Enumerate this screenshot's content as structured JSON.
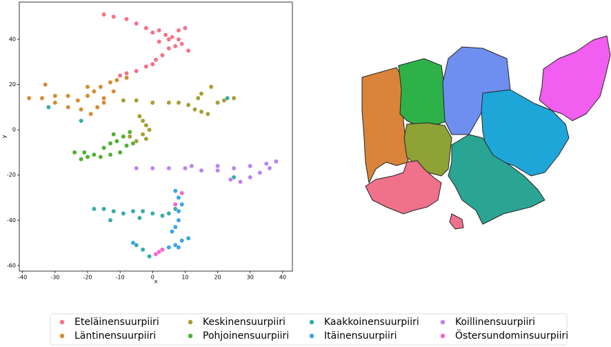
{
  "chart_data": {
    "type": "scatter",
    "xlabel": "x",
    "ylabel": "y",
    "xlim": [
      -41,
      43
    ],
    "ylim": [
      -62.5,
      56.5
    ],
    "xticks": [
      -40,
      -30,
      -20,
      -10,
      0,
      10,
      20,
      30,
      40
    ],
    "yticks": [
      -60,
      -40,
      -20,
      0,
      20,
      40
    ],
    "series": [
      {
        "name": "Eteläinensuurpiiri",
        "color": "#f77189",
        "x": [
          -15,
          -12,
          -8,
          -5,
          -2,
          0,
          2,
          4,
          6,
          8,
          10,
          9,
          7,
          5,
          3,
          1,
          0,
          -2,
          -5,
          -8,
          -10,
          11,
          2,
          5,
          8
        ],
        "y": [
          51,
          50,
          49,
          47,
          45,
          43,
          44,
          42,
          41,
          44,
          45,
          38,
          37,
          36,
          33,
          31,
          29,
          28,
          26,
          25,
          24,
          35,
          39,
          40,
          40
        ]
      },
      {
        "name": "Läntinensuurpiiri",
        "color": "#d58c32",
        "x": [
          -38,
          -34,
          -30,
          -26,
          -23,
          -20,
          -18,
          -16,
          -13,
          -11,
          -15,
          -17,
          -22,
          -26,
          -30,
          -33,
          -20,
          -15,
          -12,
          -8,
          -19
        ],
        "y": [
          14,
          14,
          15,
          15,
          13,
          15,
          17,
          19,
          21,
          22,
          12,
          10,
          9,
          10,
          12,
          20,
          19,
          14,
          17,
          23,
          7
        ]
      },
      {
        "name": "Keskinensuurpiiri",
        "color": "#a4a031",
        "x": [
          -4,
          -3,
          -2,
          -1,
          -3,
          -5,
          -2,
          -7,
          -9,
          -5,
          0,
          5,
          8,
          11,
          13,
          15,
          17,
          15,
          18,
          14,
          20,
          22,
          25
        ],
        "y": [
          6,
          4,
          2,
          0,
          -2,
          -5,
          -4,
          -3,
          13,
          13,
          12,
          12,
          12,
          11,
          9,
          8,
          7,
          16,
          19,
          14,
          12,
          13,
          14
        ]
      },
      {
        "name": "Pohjoinensuurpiiri",
        "color": "#50b131",
        "x": [
          -24,
          -21,
          -18,
          -15,
          -13,
          -11,
          -9,
          -7,
          -6,
          -10,
          -13,
          -16,
          -20,
          -22,
          -8,
          -12
        ],
        "y": [
          -10,
          -10,
          -11,
          -8,
          -6,
          -5,
          -3,
          -1,
          -6,
          -10,
          -11,
          -12,
          -12,
          -13,
          -7,
          -2
        ]
      },
      {
        "name": "Kaakkoinensuurpiiri",
        "color": "#36ada4",
        "x": [
          -18,
          -15,
          -12,
          -9,
          -6,
          -3,
          0,
          3,
          5,
          7,
          -13,
          -4,
          -5,
          -3,
          -1,
          25,
          -32,
          -22,
          23
        ],
        "y": [
          -35,
          -35,
          -36,
          -37,
          -36,
          -36,
          -37,
          -38,
          -37,
          -35,
          -40,
          -39,
          -51,
          -53,
          -56,
          -21,
          10,
          4,
          14
        ]
      },
      {
        "name": "Itäinensuurpiiri",
        "color": "#3ba3ec",
        "x": [
          8,
          8,
          9,
          8,
          7,
          7,
          6,
          3,
          5,
          7,
          9,
          11,
          8,
          -6
        ],
        "y": [
          -40,
          -36,
          -33,
          -30,
          -27,
          -43,
          -45,
          -53,
          -52,
          -51,
          -49,
          -48,
          -52,
          -50
        ]
      },
      {
        "name": "Koillinensuurpiiri",
        "color": "#bb83f4",
        "x": [
          -5,
          0,
          5,
          10,
          15,
          20,
          25,
          30,
          35,
          38,
          36,
          33,
          30,
          27,
          24,
          20,
          12
        ],
        "y": [
          -17,
          -17,
          -17,
          -17,
          -18,
          -18,
          -17,
          -16,
          -15,
          -14,
          -17,
          -19,
          -21,
          -23,
          -22,
          -16,
          -16
        ]
      },
      {
        "name": "Östersundominsuurpiiri",
        "color": "#f564d4",
        "x": [
          1,
          2,
          3,
          9,
          7
        ],
        "y": [
          -55,
          -54,
          -53,
          -28,
          -33
        ]
      }
    ]
  }
}
